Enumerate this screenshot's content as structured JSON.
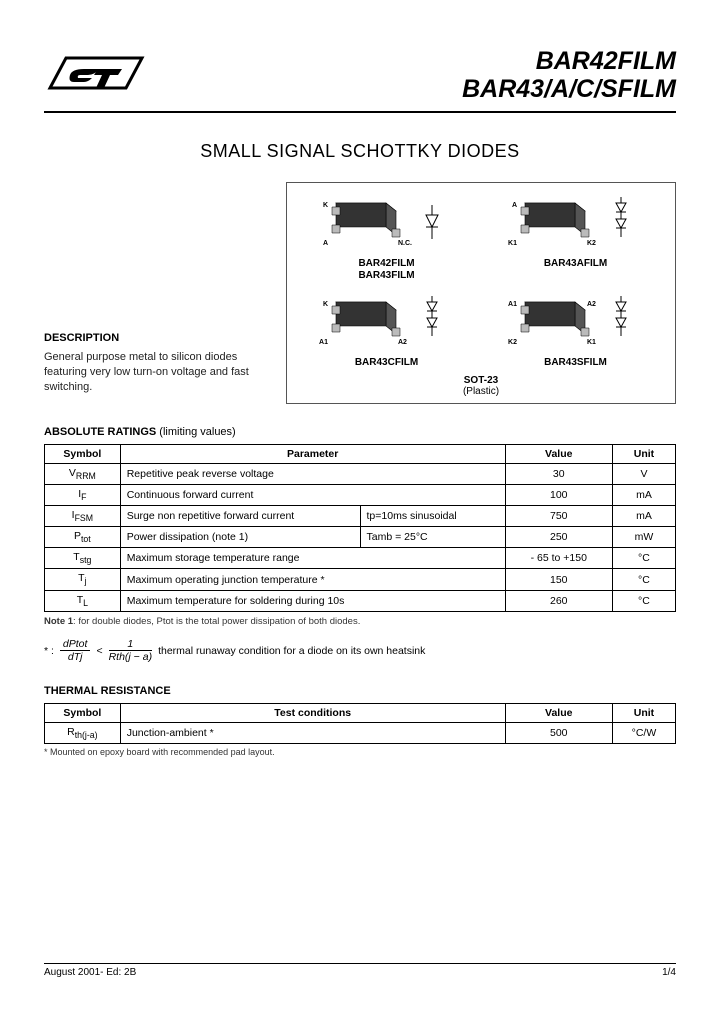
{
  "header": {
    "title1": "BAR42FILM",
    "title2": "BAR43/A/C/SFILM"
  },
  "subtitle": "SMALL SIGNAL SCHOTTKY DIODES",
  "description": {
    "heading": "DESCRIPTION",
    "text": "General purpose metal to silicon diodes featuring very low turn-on voltage and fast switching."
  },
  "packages": {
    "items": [
      {
        "label": "BAR42FILM\nBAR43FILM",
        "pins": [
          "K",
          "A",
          "N.C."
        ],
        "sym": "single"
      },
      {
        "label": "BAR43AFILM",
        "pins": [
          "A",
          "K1",
          "K2"
        ],
        "sym": "dual-ca"
      },
      {
        "label": "BAR43CFILM",
        "pins": [
          "K",
          "A1",
          "A2"
        ],
        "sym": "dual-ck"
      },
      {
        "label": "BAR43SFILM",
        "pins": [
          "A1",
          "K2",
          "K1",
          "A2"
        ],
        "sym": "series"
      }
    ],
    "footer": "SOT-23",
    "footer_sub": "(Plastic)"
  },
  "ratings": {
    "title": "ABSOLUTE RATINGS",
    "title_suffix": " (limiting values)",
    "columns": [
      "Symbol",
      "Parameter",
      "Value",
      "Unit"
    ],
    "rows": [
      {
        "sym": "V",
        "sub": "RRM",
        "param": "Repetitive peak reverse voltage",
        "cond": "",
        "value": "30",
        "unit": "V"
      },
      {
        "sym": "I",
        "sub": "F",
        "param": "Continuous forward current",
        "cond": "",
        "value": "100",
        "unit": "mA"
      },
      {
        "sym": "I",
        "sub": "FSM",
        "param": "Surge non repetitive forward current",
        "cond": "tp=10ms sinusoidal",
        "value": "750",
        "unit": "mA"
      },
      {
        "sym": "P",
        "sub": "tot",
        "param": "Power dissipation (note 1)",
        "cond": "Tamb = 25°C",
        "value": "250",
        "unit": "mW"
      },
      {
        "sym": "T",
        "sub": "stg",
        "param": "Maximum storage temperature range",
        "cond": "",
        "value": "- 65 to +150",
        "unit": "°C"
      },
      {
        "sym": "T",
        "sub": "j",
        "param": "Maximum operating junction temperature *",
        "cond": "",
        "value": "150",
        "unit": "°C"
      },
      {
        "sym": "T",
        "sub": "L",
        "param": "Maximum temperature for soldering during 10s",
        "cond": "",
        "value": "260",
        "unit": "°C"
      }
    ],
    "note": "Note 1: for double diodes, Ptot is the total power dissipation of both diodes."
  },
  "formula": {
    "prefix": "* :",
    "lhs_num": "dPtot",
    "lhs_den": "dTj",
    "op": "<",
    "rhs_num": "1",
    "rhs_den": "Rth(j − a)",
    "tail": "thermal   runaway condition for a diode on its own heatsink"
  },
  "thermal": {
    "title": "THERMAL RESISTANCE",
    "columns": [
      "Symbol",
      "Test conditions",
      "Value",
      "Unit"
    ],
    "row": {
      "sym": "R",
      "sub": "th(j-a)",
      "cond": "Junction-ambient *",
      "value": "500",
      "unit": "°C/W"
    },
    "note": "* Mounted on  epoxy board with recommended pad layout."
  },
  "footer": {
    "left": "August 2001- Ed: 2B",
    "right": "1/4"
  },
  "colors": {
    "text": "#000000",
    "border": "#000000",
    "chip_top": "#888888",
    "chip_side": "#333333"
  }
}
